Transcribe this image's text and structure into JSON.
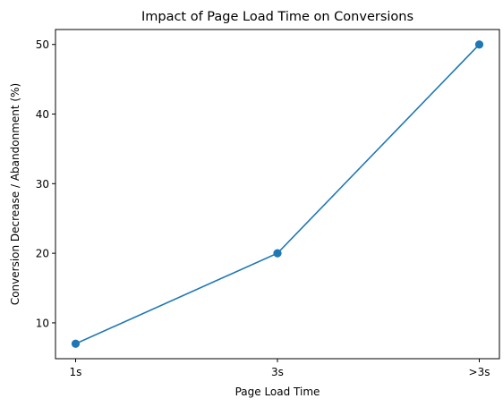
{
  "chart_data": {
    "type": "line",
    "title": "Impact of Page Load Time on Conversions",
    "xlabel": "Page Load Time",
    "ylabel": "Conversion Decrease / Abandonment (%)",
    "categories": [
      "1s",
      "3s",
      ">3s"
    ],
    "series": [
      {
        "values": [
          7,
          20,
          50
        ],
        "color": "#1f77b4",
        "marker": "circle"
      }
    ],
    "y_ticks": [
      10,
      20,
      30,
      40,
      50
    ],
    "ylim": [
      4.85,
      52.15
    ],
    "grid": false,
    "legend": "none"
  }
}
